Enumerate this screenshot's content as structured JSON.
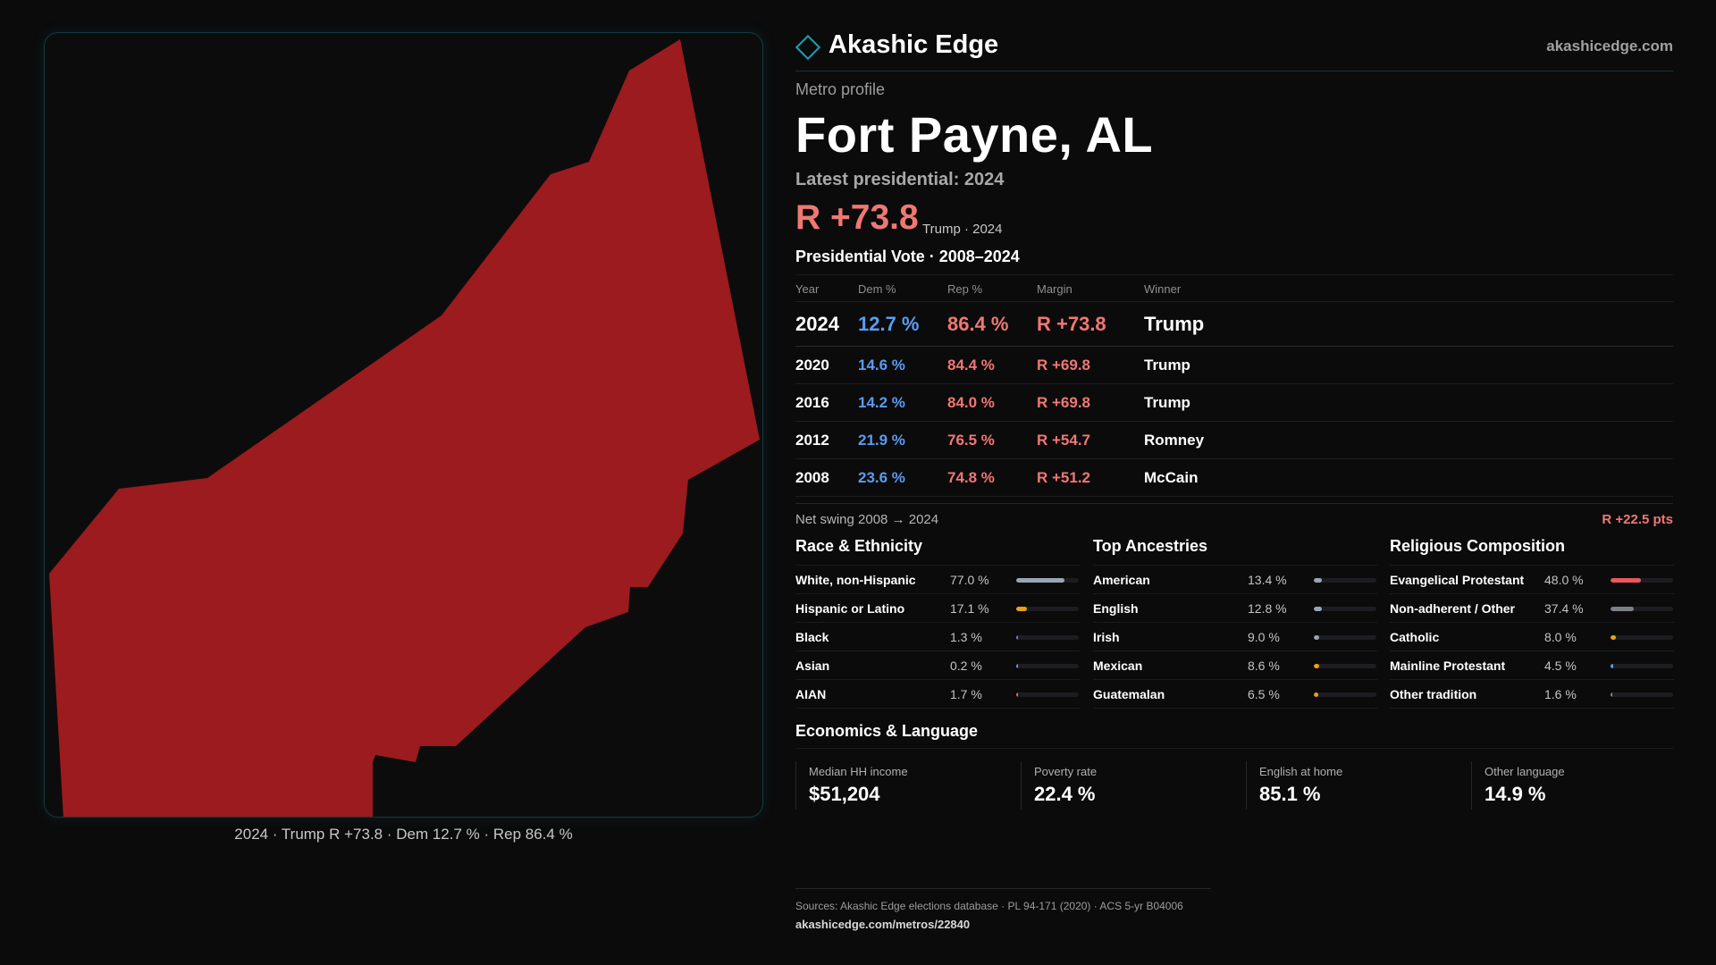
{
  "brand": {
    "name": "Akashic Edge",
    "url": "akashicedge.com"
  },
  "profile": {
    "eyebrow": "Metro profile",
    "title": "Fort Payne, AL",
    "latest": "Latest presidential: 2024",
    "margin": "R +73.8",
    "margin_sub": "Trump · 2024"
  },
  "map": {
    "caption": "2024 · Trump R +73.8 · Dem 12.7 % · Rep 86.4 %",
    "fill_color": "#9b1b1e"
  },
  "vote": {
    "title": "Presidential Vote · 2008–2024",
    "headers": {
      "year": "Year",
      "dem": "Dem %",
      "rep": "Rep %",
      "margin": "Margin",
      "winner": "Winner"
    },
    "rows": [
      {
        "year": "2024",
        "dem": "12.7 %",
        "rep": "86.4 %",
        "margin": "R +73.8",
        "winner": "Trump"
      },
      {
        "year": "2020",
        "dem": "14.6 %",
        "rep": "84.4 %",
        "margin": "R +69.8",
        "winner": "Trump"
      },
      {
        "year": "2016",
        "dem": "14.2 %",
        "rep": "84.0 %",
        "margin": "R +69.8",
        "winner": "Trump"
      },
      {
        "year": "2012",
        "dem": "21.9 %",
        "rep": "76.5 %",
        "margin": "R +54.7",
        "winner": "Romney"
      },
      {
        "year": "2008",
        "dem": "23.6 %",
        "rep": "74.8 %",
        "margin": "R +51.2",
        "winner": "McCain"
      }
    ],
    "swing_label": "Net swing 2008 → 2024",
    "swing_value": "R +22.5 pts"
  },
  "race": {
    "title": "Race & Ethnicity",
    "rows": [
      {
        "label": "White, non-Hispanic",
        "value": "77.0 %",
        "pct": 77.0,
        "color": "#9aa5b4"
      },
      {
        "label": "Hispanic or Latino",
        "value": "17.1 %",
        "pct": 17.1,
        "color": "#e6a21a"
      },
      {
        "label": "Black",
        "value": "1.3 %",
        "pct": 1.3,
        "color": "#6b7fd8"
      },
      {
        "label": "Asian",
        "value": "0.2 %",
        "pct": 0.2,
        "color": "#5a9cf2"
      },
      {
        "label": "AIAN",
        "value": "1.7 %",
        "pct": 1.7,
        "color": "#d8704e"
      }
    ]
  },
  "ancestry": {
    "title": "Top Ancestries",
    "rows": [
      {
        "label": "American",
        "value": "13.4 %",
        "pct": 13.4,
        "color": "#9aa5b4"
      },
      {
        "label": "English",
        "value": "12.8 %",
        "pct": 12.8,
        "color": "#9aa5b4"
      },
      {
        "label": "Irish",
        "value": "9.0 %",
        "pct": 9.0,
        "color": "#9aa5b4"
      },
      {
        "label": "Mexican",
        "value": "8.6 %",
        "pct": 8.6,
        "color": "#e6a21a"
      },
      {
        "label": "Guatemalan",
        "value": "6.5 %",
        "pct": 6.5,
        "color": "#e6a21a"
      }
    ]
  },
  "religion": {
    "title": "Religious Composition",
    "rows": [
      {
        "label": "Evangelical Protestant",
        "value": "48.0 %",
        "pct": 48.0,
        "color": "#e8585c"
      },
      {
        "label": "Non-adherent / Other",
        "value": "37.4 %",
        "pct": 37.4,
        "color": "#7a7f88"
      },
      {
        "label": "Catholic",
        "value": "8.0 %",
        "pct": 8.0,
        "color": "#e6a21a"
      },
      {
        "label": "Mainline Protestant",
        "value": "4.5 %",
        "pct": 4.5,
        "color": "#5a9cf2"
      },
      {
        "label": "Other tradition",
        "value": "1.6 %",
        "pct": 1.6,
        "color": "#8a8a8a"
      }
    ]
  },
  "economics": {
    "title": "Economics & Language",
    "cells": [
      {
        "label": "Median HH income",
        "value": "$51,204"
      },
      {
        "label": "Poverty rate",
        "value": "22.4 %"
      },
      {
        "label": "English at home",
        "value": "85.1 %"
      },
      {
        "label": "Other language",
        "value": "14.9 %"
      }
    ]
  },
  "footer": {
    "sources": "Sources: Akashic Edge elections database · PL 94-171 (2020) · ACS 5-yr B04006",
    "link": "akashicedge.com/metros/22840"
  }
}
